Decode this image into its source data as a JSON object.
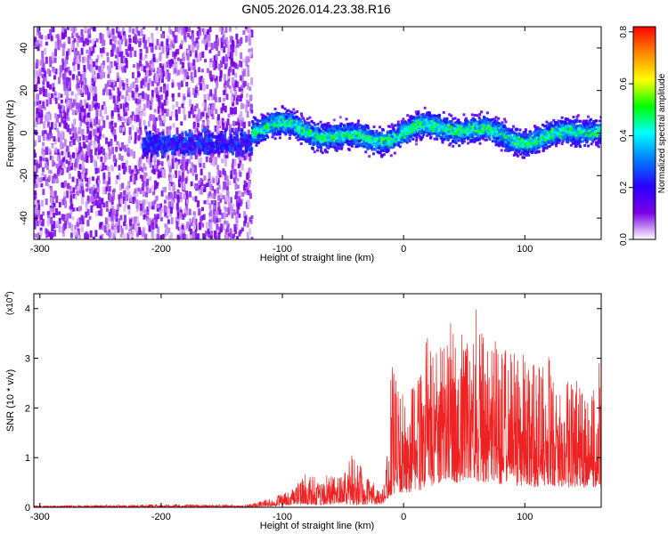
{
  "title": "GN05.2026.014.23.38.R16",
  "chart_data": [
    {
      "type": "heatmap",
      "panel": "spectrogram",
      "xlabel": "Height of straight line (km)",
      "ylabel": "Frequency (Hz)",
      "xlim": [
        -305,
        163
      ],
      "ylim": [
        -50,
        50
      ],
      "xticks": [
        -300,
        -200,
        -100,
        0,
        100
      ],
      "yticks": [
        -40,
        -20,
        0,
        20,
        40
      ],
      "colorbar": {
        "label": "Normalized spectral amplitude",
        "range": [
          0.0,
          0.82
        ],
        "ticks": [
          "0.0",
          "0.2",
          "0.4",
          "0.6",
          "0.8"
        ],
        "colormap": [
          "#ffffff",
          "#7a00e6",
          "#2a00ff",
          "#007bff",
          "#00ffff",
          "#00ff00",
          "#ffff00",
          "#ff8800",
          "#ff0000"
        ]
      },
      "regions": [
        {
          "x_range": [
            -305,
            -125
          ],
          "description": "noise",
          "freq_spread_hz": 50,
          "amplitude": 0.08
        },
        {
          "x_range": [
            -215,
            -125
          ],
          "description": "weak trace",
          "freq_center_hz": -5,
          "amplitude": 0.2
        },
        {
          "x_range": [
            -125,
            163
          ],
          "description": "signal band",
          "freq_center_hz": 0,
          "band_halfwidth_hz": 10,
          "amplitude": 0.35
        }
      ]
    },
    {
      "type": "line",
      "panel": "snr",
      "xlabel": "Height of straight line (km)",
      "ylabel": "SNR (10 * v/v)",
      "scale_label": "(x10",
      "scale_exponent": "4",
      "xlim": [
        -305,
        163
      ],
      "ylim": [
        0,
        4.3
      ],
      "xticks": [
        -300,
        -200,
        -100,
        0,
        100
      ],
      "yticks": [
        0,
        1,
        2,
        3,
        4
      ],
      "color": "#ee2222",
      "envelope": {
        "x": [
          -305,
          -200,
          -130,
          -110,
          -100,
          -90,
          -80,
          -70,
          -60,
          -50,
          -45,
          -40,
          -30,
          -20,
          -15,
          -10,
          0,
          10,
          20,
          30,
          40,
          45,
          50,
          55,
          60,
          70,
          80,
          90,
          100,
          110,
          120,
          130,
          140,
          150,
          163
        ],
        "y_max": [
          0.03,
          0.06,
          0.05,
          0.18,
          0.3,
          0.4,
          0.72,
          0.55,
          0.7,
          0.6,
          1.08,
          1.05,
          0.6,
          0.4,
          0.5,
          3.15,
          2.35,
          2.45,
          3.5,
          3.2,
          3.8,
          3.2,
          4.22,
          3.0,
          4.2,
          3.2,
          3.5,
          3.1,
          3.2,
          2.9,
          3.05,
          2.4,
          2.75,
          2.3,
          3.0
        ],
        "y_min": [
          0,
          0,
          0,
          0.02,
          0.04,
          0.05,
          0.06,
          0.05,
          0.06,
          0.08,
          0.05,
          0.05,
          0.05,
          0.05,
          0.1,
          0.25,
          0.3,
          0.3,
          0.4,
          0.5,
          0.5,
          0.5,
          0.55,
          0.6,
          0.5,
          0.5,
          0.45,
          0.4,
          0.45,
          0.4,
          0.45,
          0.4,
          0.4,
          0.4,
          0.4
        ]
      }
    }
  ]
}
